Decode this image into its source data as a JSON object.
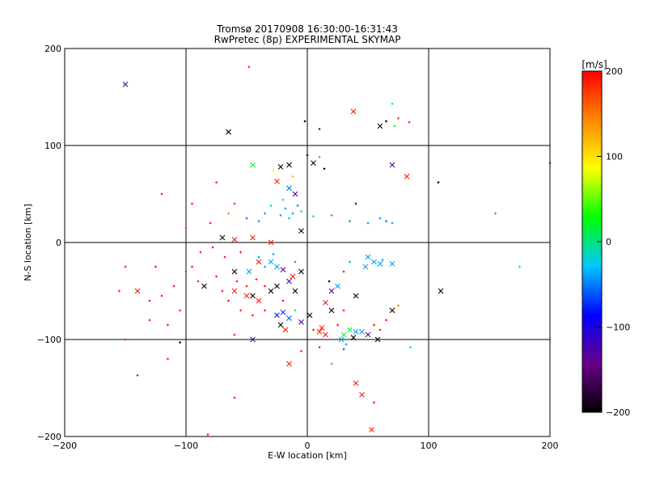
{
  "chart_data": {
    "type": "scatter",
    "title": "Tromsø 20170908 16:30:00-16:31:43",
    "subtitle": "RwPretec (8p) EXPERIMENTAL SKYMAP",
    "xlabel": "E-W location [km]",
    "ylabel": "N-S location [km]",
    "xlim": [
      -200,
      200
    ],
    "ylim": [
      -200,
      200
    ],
    "xticks": [
      -200,
      -100,
      0,
      100,
      200
    ],
    "yticks": [
      -200,
      -100,
      0,
      100,
      200
    ],
    "xtick_labels": [
      "−200",
      "−100",
      "0",
      "100",
      "200"
    ],
    "ytick_labels": [
      "−200",
      "−100",
      "0",
      "100",
      "200"
    ],
    "grid": true,
    "colorbar": {
      "label": "[m/s]",
      "range": [
        -200,
        200
      ],
      "ticks": [
        200,
        100,
        0,
        -100,
        -200
      ],
      "tick_labels": [
        "200",
        "100",
        "0",
        "−100",
        "−200"
      ],
      "colors": [
        "#000000",
        "#6a0088",
        "#0000ff",
        "#00c8ff",
        "#00ff00",
        "#ffff00",
        "#ff8800",
        "#ff0000"
      ]
    },
    "markers": [
      {
        "x": -150,
        "y": 163,
        "v": -130,
        "m": "x"
      },
      {
        "x": -65,
        "y": 114,
        "v": -200,
        "m": "x"
      },
      {
        "x": -48,
        "y": 181,
        "v": 190,
        "m": "d"
      },
      {
        "x": 38,
        "y": 135,
        "v": 190,
        "m": "x"
      },
      {
        "x": 10,
        "y": 117,
        "v": -150,
        "m": "d"
      },
      {
        "x": -2,
        "y": 125,
        "v": -200,
        "m": "d"
      },
      {
        "x": 60,
        "y": 120,
        "v": -200,
        "m": "x"
      },
      {
        "x": 65,
        "y": 125,
        "v": -200,
        "m": "d"
      },
      {
        "x": 70,
        "y": 143,
        "v": 20,
        "m": "d"
      },
      {
        "x": 75,
        "y": 128,
        "v": 180,
        "m": "d"
      },
      {
        "x": 84,
        "y": 124,
        "v": 190,
        "m": "d"
      },
      {
        "x": 72,
        "y": 120,
        "v": 40,
        "m": "d"
      },
      {
        "x": -45,
        "y": 80,
        "v": 20,
        "m": "x"
      },
      {
        "x": -22,
        "y": 78,
        "v": -200,
        "m": "x"
      },
      {
        "x": -15,
        "y": 80,
        "v": -200,
        "m": "x"
      },
      {
        "x": -28,
        "y": 74,
        "v": 80,
        "m": "d"
      },
      {
        "x": 0,
        "y": 90,
        "v": -200,
        "m": "d"
      },
      {
        "x": 5,
        "y": 82,
        "v": -200,
        "m": "x"
      },
      {
        "x": 10,
        "y": 88,
        "v": 20,
        "m": "d"
      },
      {
        "x": 14,
        "y": 76,
        "v": -200,
        "m": "d"
      },
      {
        "x": -12,
        "y": 68,
        "v": 120,
        "m": "d"
      },
      {
        "x": 70,
        "y": 80,
        "v": -130,
        "m": "x"
      },
      {
        "x": 82,
        "y": 68,
        "v": 190,
        "m": "x"
      },
      {
        "x": 108,
        "y": 62,
        "v": -200,
        "m": "d"
      },
      {
        "x": 200,
        "y": 82,
        "v": -130,
        "m": "d"
      },
      {
        "x": -25,
        "y": 63,
        "v": 190,
        "m": "x"
      },
      {
        "x": -15,
        "y": 56,
        "v": -50,
        "m": "x"
      },
      {
        "x": -10,
        "y": 50,
        "v": -130,
        "m": "x"
      },
      {
        "x": -20,
        "y": 44,
        "v": 20,
        "m": "d"
      },
      {
        "x": -30,
        "y": 38,
        "v": -20,
        "m": "d"
      },
      {
        "x": -18,
        "y": 35,
        "v": -40,
        "m": "d"
      },
      {
        "x": -12,
        "y": 30,
        "v": -40,
        "m": "d"
      },
      {
        "x": -5,
        "y": 32,
        "v": -30,
        "m": "d"
      },
      {
        "x": -22,
        "y": 28,
        "v": -40,
        "m": "d"
      },
      {
        "x": -8,
        "y": 38,
        "v": -50,
        "m": "d"
      },
      {
        "x": -15,
        "y": 25,
        "v": -30,
        "m": "d"
      },
      {
        "x": -35,
        "y": 30,
        "v": -40,
        "m": "d"
      },
      {
        "x": -40,
        "y": 22,
        "v": -40,
        "m": "d"
      },
      {
        "x": -50,
        "y": 25,
        "v": -50,
        "m": "d"
      },
      {
        "x": 5,
        "y": 27,
        "v": -30,
        "m": "d"
      },
      {
        "x": 20,
        "y": 28,
        "v": -40,
        "m": "d"
      },
      {
        "x": 35,
        "y": 22,
        "v": -40,
        "m": "d"
      },
      {
        "x": 50,
        "y": 20,
        "v": -40,
        "m": "d"
      },
      {
        "x": 60,
        "y": 25,
        "v": -40,
        "m": "d"
      },
      {
        "x": 65,
        "y": 22,
        "v": -50,
        "m": "d"
      },
      {
        "x": 70,
        "y": 20,
        "v": -40,
        "m": "d"
      },
      {
        "x": 40,
        "y": 40,
        "v": -130,
        "m": "d"
      },
      {
        "x": 155,
        "y": 30,
        "v": -40,
        "m": "d"
      },
      {
        "x": 175,
        "y": -25,
        "v": 20,
        "m": "d"
      },
      {
        "x": -60,
        "y": 40,
        "v": 180,
        "m": "d"
      },
      {
        "x": -95,
        "y": 40,
        "v": 190,
        "m": "d"
      },
      {
        "x": -120,
        "y": 50,
        "v": 190,
        "m": "d"
      },
      {
        "x": -80,
        "y": 20,
        "v": 190,
        "m": "d"
      },
      {
        "x": -100,
        "y": 15,
        "v": 190,
        "m": "d"
      },
      {
        "x": -75,
        "y": 62,
        "v": 190,
        "m": "d"
      },
      {
        "x": -65,
        "y": 30,
        "v": 150,
        "m": "d"
      },
      {
        "x": -70,
        "y": 5,
        "v": -200,
        "m": "x"
      },
      {
        "x": -60,
        "y": 3,
        "v": 190,
        "m": "x"
      },
      {
        "x": -45,
        "y": 5,
        "v": 190,
        "m": "x"
      },
      {
        "x": -30,
        "y": 0,
        "v": 190,
        "m": "x"
      },
      {
        "x": -55,
        "y": -10,
        "v": 190,
        "m": "d"
      },
      {
        "x": -40,
        "y": -20,
        "v": 190,
        "m": "x"
      },
      {
        "x": -25,
        "y": -25,
        "v": -40,
        "m": "x"
      },
      {
        "x": -10,
        "y": -20,
        "v": -40,
        "m": "d"
      },
      {
        "x": -5,
        "y": 12,
        "v": -200,
        "m": "x"
      },
      {
        "x": -20,
        "y": -28,
        "v": -130,
        "m": "x"
      },
      {
        "x": -12,
        "y": -35,
        "v": 190,
        "m": "x"
      },
      {
        "x": -5,
        "y": -30,
        "v": -200,
        "m": "x"
      },
      {
        "x": -60,
        "y": -30,
        "v": -200,
        "m": "x"
      },
      {
        "x": -75,
        "y": -35,
        "v": 190,
        "m": "d"
      },
      {
        "x": -85,
        "y": -45,
        "v": -200,
        "m": "x"
      },
      {
        "x": -100,
        "y": -30,
        "v": 190,
        "m": "d"
      },
      {
        "x": -110,
        "y": -45,
        "v": 190,
        "m": "d"
      },
      {
        "x": -120,
        "y": -55,
        "v": 190,
        "m": "d"
      },
      {
        "x": -130,
        "y": -60,
        "v": 190,
        "m": "d"
      },
      {
        "x": -140,
        "y": -50,
        "v": 190,
        "m": "x"
      },
      {
        "x": -155,
        "y": -50,
        "v": 190,
        "m": "d"
      },
      {
        "x": -150,
        "y": -25,
        "v": 190,
        "m": "d"
      },
      {
        "x": -125,
        "y": -25,
        "v": 190,
        "m": "d"
      },
      {
        "x": -105,
        "y": -70,
        "v": 190,
        "m": "d"
      },
      {
        "x": -115,
        "y": -85,
        "v": 190,
        "m": "d"
      },
      {
        "x": -130,
        "y": -80,
        "v": 190,
        "m": "d"
      },
      {
        "x": -60,
        "y": -50,
        "v": 190,
        "m": "x"
      },
      {
        "x": -50,
        "y": -55,
        "v": 190,
        "m": "x"
      },
      {
        "x": -45,
        "y": -55,
        "v": -200,
        "m": "x"
      },
      {
        "x": -40,
        "y": -60,
        "v": 190,
        "m": "x"
      },
      {
        "x": -35,
        "y": -45,
        "v": 190,
        "m": "d"
      },
      {
        "x": -30,
        "y": -50,
        "v": -200,
        "m": "x"
      },
      {
        "x": -25,
        "y": -45,
        "v": -200,
        "m": "x"
      },
      {
        "x": -20,
        "y": -60,
        "v": 190,
        "m": "d"
      },
      {
        "x": -15,
        "y": -40,
        "v": -130,
        "m": "x"
      },
      {
        "x": -10,
        "y": -50,
        "v": -200,
        "m": "x"
      },
      {
        "x": -65,
        "y": -60,
        "v": 190,
        "m": "d"
      },
      {
        "x": -70,
        "y": -50,
        "v": 190,
        "m": "d"
      },
      {
        "x": -55,
        "y": -70,
        "v": 190,
        "m": "d"
      },
      {
        "x": -45,
        "y": -75,
        "v": 190,
        "m": "d"
      },
      {
        "x": -35,
        "y": -70,
        "v": 190,
        "m": "d"
      },
      {
        "x": -50,
        "y": -45,
        "v": 190,
        "m": "d"
      },
      {
        "x": -42,
        "y": -38,
        "v": 190,
        "m": "d"
      },
      {
        "x": -58,
        "y": -40,
        "v": 190,
        "m": "d"
      },
      {
        "x": -25,
        "y": -75,
        "v": -80,
        "m": "x"
      },
      {
        "x": -20,
        "y": -72,
        "v": -70,
        "m": "x"
      },
      {
        "x": -15,
        "y": -78,
        "v": -60,
        "m": "x"
      },
      {
        "x": -10,
        "y": -70,
        "v": 20,
        "m": "d"
      },
      {
        "x": -22,
        "y": -85,
        "v": -200,
        "m": "x"
      },
      {
        "x": -18,
        "y": -90,
        "v": 190,
        "m": "x"
      },
      {
        "x": -5,
        "y": -82,
        "v": -130,
        "m": "x"
      },
      {
        "x": 2,
        "y": -75,
        "v": -200,
        "m": "x"
      },
      {
        "x": 5,
        "y": -90,
        "v": 190,
        "m": "d"
      },
      {
        "x": 10,
        "y": -92,
        "v": 190,
        "m": "x"
      },
      {
        "x": 15,
        "y": -95,
        "v": 190,
        "m": "x"
      },
      {
        "x": 12,
        "y": -88,
        "v": 190,
        "m": "x"
      },
      {
        "x": 25,
        "y": -85,
        "v": 190,
        "m": "d"
      },
      {
        "x": 30,
        "y": -95,
        "v": 20,
        "m": "x"
      },
      {
        "x": 35,
        "y": -90,
        "v": 20,
        "m": "x"
      },
      {
        "x": 40,
        "y": -92,
        "v": -40,
        "m": "x"
      },
      {
        "x": 28,
        "y": -100,
        "v": -40,
        "m": "x"
      },
      {
        "x": 32,
        "y": -105,
        "v": -40,
        "m": "d"
      },
      {
        "x": 38,
        "y": -98,
        "v": -200,
        "m": "x"
      },
      {
        "x": 45,
        "y": -92,
        "v": -40,
        "m": "x"
      },
      {
        "x": 50,
        "y": -95,
        "v": -130,
        "m": "x"
      },
      {
        "x": 55,
        "y": -85,
        "v": 190,
        "m": "d"
      },
      {
        "x": 60,
        "y": -90,
        "v": 190,
        "m": "d"
      },
      {
        "x": 58,
        "y": -100,
        "v": -200,
        "m": "x"
      },
      {
        "x": 65,
        "y": -80,
        "v": 190,
        "m": "d"
      },
      {
        "x": 70,
        "y": -70,
        "v": -200,
        "m": "x"
      },
      {
        "x": 75,
        "y": -65,
        "v": 150,
        "m": "d"
      },
      {
        "x": 30,
        "y": -70,
        "v": 190,
        "m": "d"
      },
      {
        "x": 20,
        "y": -70,
        "v": -200,
        "m": "x"
      },
      {
        "x": 15,
        "y": -62,
        "v": 190,
        "m": "x"
      },
      {
        "x": 40,
        "y": -55,
        "v": -200,
        "m": "x"
      },
      {
        "x": 20,
        "y": -50,
        "v": -130,
        "m": "x"
      },
      {
        "x": 25,
        "y": -45,
        "v": -40,
        "m": "x"
      },
      {
        "x": 18,
        "y": -40,
        "v": -200,
        "m": "d"
      },
      {
        "x": 30,
        "y": -30,
        "v": 190,
        "m": "d"
      },
      {
        "x": 35,
        "y": -20,
        "v": -40,
        "m": "d"
      },
      {
        "x": 50,
        "y": -15,
        "v": -40,
        "m": "x"
      },
      {
        "x": 55,
        "y": -20,
        "v": -40,
        "m": "x"
      },
      {
        "x": 60,
        "y": -22,
        "v": -40,
        "m": "x"
      },
      {
        "x": 48,
        "y": -25,
        "v": -40,
        "m": "x"
      },
      {
        "x": 62,
        "y": -18,
        "v": -40,
        "m": "d"
      },
      {
        "x": 70,
        "y": -22,
        "v": -40,
        "m": "x"
      },
      {
        "x": 110,
        "y": -50,
        "v": -200,
        "m": "x"
      },
      {
        "x": -30,
        "y": -20,
        "v": -40,
        "m": "x"
      },
      {
        "x": -28,
        "y": -12,
        "v": -40,
        "m": "d"
      },
      {
        "x": -35,
        "y": -25,
        "v": -40,
        "m": "d"
      },
      {
        "x": -48,
        "y": -30,
        "v": -40,
        "m": "x"
      },
      {
        "x": -40,
        "y": -15,
        "v": -40,
        "m": "d"
      },
      {
        "x": -90,
        "y": -40,
        "v": 190,
        "m": "d"
      },
      {
        "x": -95,
        "y": -25,
        "v": 190,
        "m": "d"
      },
      {
        "x": -88,
        "y": -10,
        "v": 190,
        "m": "d"
      },
      {
        "x": -78,
        "y": -5,
        "v": 190,
        "m": "d"
      },
      {
        "x": -68,
        "y": -15,
        "v": 190,
        "m": "d"
      },
      {
        "x": -45,
        "y": -100,
        "v": -130,
        "m": "x"
      },
      {
        "x": -60,
        "y": -95,
        "v": 190,
        "m": "d"
      },
      {
        "x": -15,
        "y": -125,
        "v": 190,
        "m": "x"
      },
      {
        "x": -5,
        "y": -112,
        "v": 190,
        "m": "d"
      },
      {
        "x": 10,
        "y": -108,
        "v": 190,
        "m": "d"
      },
      {
        "x": 20,
        "y": -125,
        "v": 150,
        "m": "d"
      },
      {
        "x": 30,
        "y": -110,
        "v": -60,
        "m": "d"
      },
      {
        "x": 40,
        "y": -145,
        "v": 190,
        "m": "x"
      },
      {
        "x": 45,
        "y": -157,
        "v": 190,
        "m": "x"
      },
      {
        "x": 55,
        "y": -165,
        "v": 190,
        "m": "d"
      },
      {
        "x": 53,
        "y": -193,
        "v": 190,
        "m": "x"
      },
      {
        "x": 85,
        "y": -108,
        "v": 20,
        "m": "d"
      },
      {
        "x": -140,
        "y": -137,
        "v": 190,
        "m": "d"
      },
      {
        "x": -115,
        "y": -120,
        "v": 190,
        "m": "d"
      },
      {
        "x": -105,
        "y": -103,
        "v": -200,
        "m": "d"
      },
      {
        "x": -150,
        "y": -100,
        "v": 190,
        "m": "d"
      },
      {
        "x": -60,
        "y": -160,
        "v": 190,
        "m": "d"
      },
      {
        "x": -82,
        "y": -198,
        "v": 190,
        "m": "d"
      }
    ]
  }
}
